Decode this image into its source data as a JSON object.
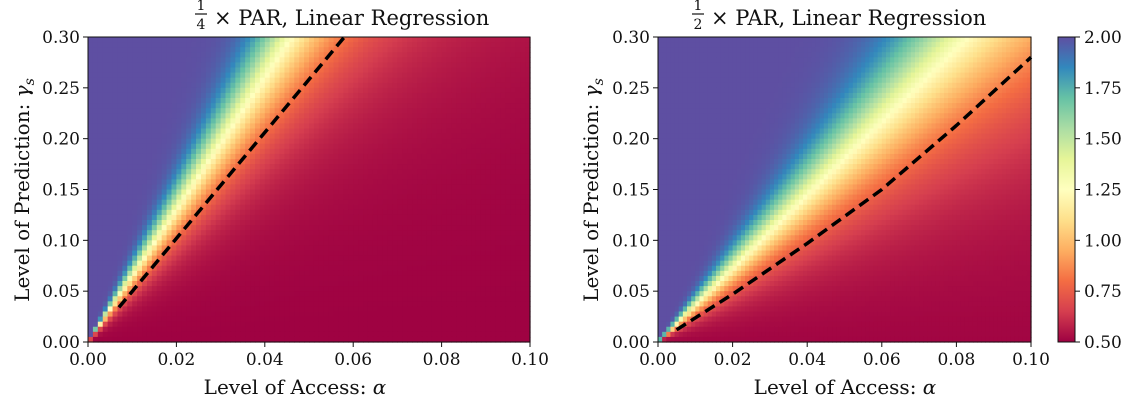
{
  "chart_data": [
    {
      "type": "heatmap",
      "title_fraction": {
        "num": "1",
        "den": "4"
      },
      "title_rest": "× PAR,  Linear Regression",
      "xlabel": "Level of Access:",
      "xlabel_symbol": "α",
      "ylabel": "Level of Prediction:",
      "ylabel_symbol": "γ",
      "ylabel_subscript": "s",
      "xlim": [
        0.0,
        0.1
      ],
      "ylim": [
        0.0,
        0.3
      ],
      "xticks": [
        "0.00",
        "0.02",
        "0.04",
        "0.06",
        "0.08",
        "0.10"
      ],
      "yticks": [
        "0.00",
        "0.05",
        "0.10",
        "0.15",
        "0.20",
        "0.25",
        "0.30"
      ],
      "peak_slope": 6.5,
      "spread_slope": 1.8,
      "dashed_line": {
        "x": [
          0.007,
          0.058
        ],
        "y": [
          0.034,
          0.3
        ]
      }
    },
    {
      "type": "heatmap",
      "title_fraction": {
        "num": "1",
        "den": "2"
      },
      "title_rest": "× PAR,  Linear Regression",
      "xlabel": "Level of Access:",
      "xlabel_symbol": "α",
      "ylabel": "Level of Prediction:",
      "ylabel_symbol": "γ",
      "ylabel_subscript": "s",
      "xlim": [
        0.0,
        0.1
      ],
      "ylim": [
        0.0,
        0.3
      ],
      "xticks": [
        "0.00",
        "0.02",
        "0.04",
        "0.06",
        "0.08",
        "0.10"
      ],
      "yticks": [
        "0.00",
        "0.05",
        "0.10",
        "0.15",
        "0.20",
        "0.25",
        "0.30"
      ],
      "peak_slope": 3.6,
      "spread_slope": 1.3,
      "dashed_line": {
        "x": [
          0.005,
          0.02,
          0.04,
          0.06,
          0.08,
          0.1
        ],
        "y": [
          0.012,
          0.047,
          0.097,
          0.15,
          0.213,
          0.28
        ]
      }
    }
  ],
  "colorbar": {
    "min": 0.5,
    "max": 2.0,
    "ticks": [
      "0.50",
      "0.75",
      "1.00",
      "1.25",
      "1.50",
      "1.75",
      "2.00"
    ],
    "colormap": [
      "#9e0142",
      "#d53e4f",
      "#f46d43",
      "#fdae61",
      "#fee08b",
      "#ffffbf",
      "#e6f598",
      "#abdda4",
      "#66c2a5",
      "#3288bd",
      "#5e4fa2"
    ]
  }
}
